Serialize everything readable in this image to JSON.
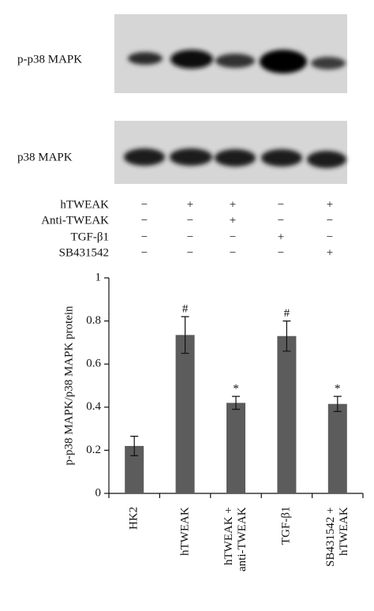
{
  "blots": [
    "p-p38 MAPK",
    "p38 MAPK"
  ],
  "treatments": [
    {
      "label": "hTWEAK",
      "signs": [
        "−",
        "+",
        "+",
        "−",
        "+"
      ]
    },
    {
      "label": "Anti-TWEAK",
      "signs": [
        "−",
        "−",
        "+",
        "−",
        "−"
      ]
    },
    {
      "label": "TGF-β1",
      "signs": [
        "−",
        "−",
        "−",
        "+",
        "−"
      ]
    },
    {
      "label": "SB431542",
      "signs": [
        "−",
        "−",
        "−",
        "−",
        "+"
      ]
    }
  ],
  "chart_data": {
    "type": "bar",
    "ylabel": "p-p38 MAPK/p38 MAPK protein",
    "categories": [
      "HK2",
      "hTWEAK",
      "hTWEAK + anti-TWEAK",
      "TGF-β1",
      "SB431542 + hTWEAK"
    ],
    "values": [
      0.22,
      0.735,
      0.42,
      0.73,
      0.415
    ],
    "errors": [
      0.045,
      0.085,
      0.03,
      0.07,
      0.035
    ],
    "markers": [
      null,
      "#",
      "*",
      "#",
      "*"
    ],
    "color": "#5c5c5c",
    "ylim": [
      0,
      1
    ],
    "yticks": [
      0,
      0.2,
      0.4,
      0.6,
      0.8,
      1
    ]
  }
}
